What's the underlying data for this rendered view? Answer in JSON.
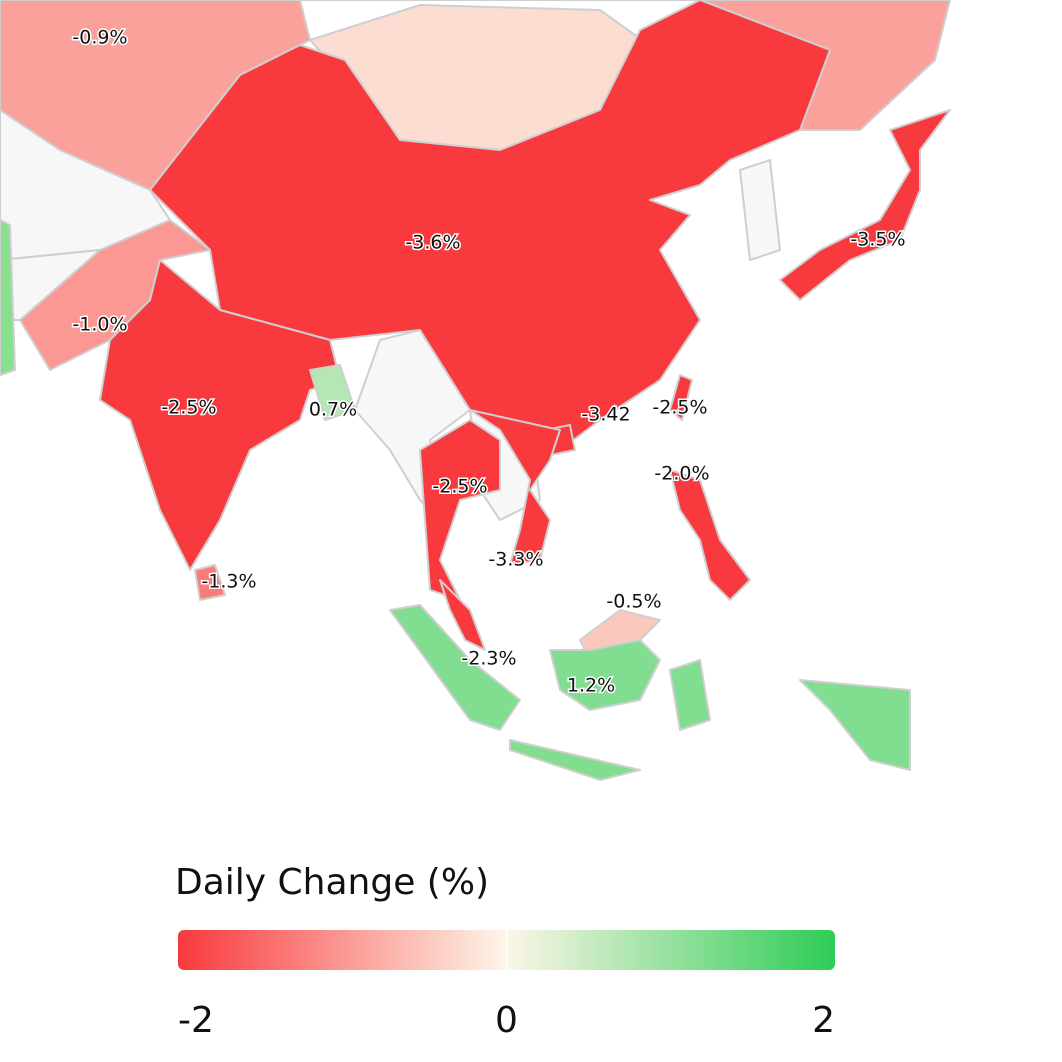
{
  "map": {
    "regions": [
      {
        "value": -0.9,
        "label": "-0.9%"
      },
      {
        "value": -3.6,
        "label": "-3.6%"
      },
      {
        "value": -3.5,
        "label": "-3.5%"
      },
      {
        "value": -1.0,
        "label": "-1.0%"
      },
      {
        "value": -2.5,
        "label": "-2.5%"
      },
      {
        "value": 0.7,
        "label": "0.7%"
      },
      {
        "value": -3.42,
        "label": "-3.42"
      },
      {
        "value": -2.5,
        "label": "-2.5%"
      },
      {
        "value": -2.5,
        "label": "-2.5%"
      },
      {
        "value": -2.0,
        "label": "-2.0%"
      },
      {
        "value": -3.3,
        "label": "-3.3%"
      },
      {
        "value": -1.3,
        "label": "-1.3%"
      },
      {
        "value": -0.5,
        "label": "-0.5%"
      },
      {
        "value": -2.3,
        "label": "-2.3%"
      },
      {
        "value": 1.2,
        "label": "1.2%"
      }
    ]
  },
  "legend": {
    "title": "Daily Change (%)",
    "range": [
      -2,
      2
    ],
    "ticks": [
      -2,
      0,
      2
    ],
    "colors": [
      "#f8393d",
      "#fdf6e8",
      "#2ecc55"
    ]
  }
}
